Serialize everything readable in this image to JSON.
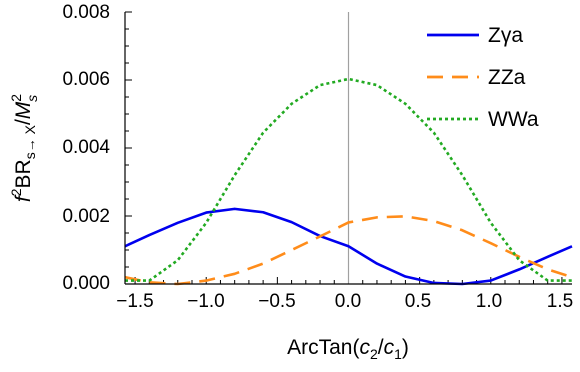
{
  "chart_data": {
    "type": "line",
    "xlabel_main": "ArcTan(",
    "xlabel_c2": "c",
    "xlabel_c2_sub": "2",
    "xlabel_slash": "/",
    "xlabel_c1": "c",
    "xlabel_c1_sub": "1",
    "xlabel_close": ")",
    "ylabel_f": "f",
    "ylabel_f_sup": "2",
    "ylabel_br": "BR",
    "ylabel_sub": "s→ X",
    "ylabel_slash": "/",
    "ylabel_m": "M",
    "ylabel_m_sup": "2",
    "ylabel_m_sub": "s",
    "xlim": [
      -1.5708,
      1.5708
    ],
    "ylim": [
      0,
      0.008
    ],
    "xticks": [
      -1.5,
      -1.0,
      -0.5,
      0.0,
      0.5,
      1.0,
      1.5
    ],
    "xtick_labels": [
      "−1.5",
      "−1.0",
      "−0.5",
      "0.0",
      "0.5",
      "1.0",
      "1.5"
    ],
    "yticks": [
      0,
      0.002,
      0.004,
      0.006,
      0.008
    ],
    "ytick_labels": [
      "0.000",
      "0.002",
      "0.004",
      "0.006",
      "0.008"
    ],
    "grid": false,
    "legend_position": "top-right",
    "reference_line_x": 0.0,
    "series": [
      {
        "name": "Zγa",
        "color": "#0000ee",
        "dash": "solid",
        "x": [
          -1.5708,
          -1.4,
          -1.2,
          -1.0,
          -0.8,
          -0.6,
          -0.4,
          -0.2,
          0.0,
          0.2,
          0.4,
          0.6,
          0.8,
          1.0,
          1.2,
          1.4,
          1.5708
        ],
        "y": [
          0.00111,
          0.00144,
          0.0018,
          0.0021,
          0.00221,
          0.00211,
          0.00182,
          0.00141,
          0.00111,
          0.0006,
          0.00022,
          3e-05,
          0.0,
          0.0001,
          0.00043,
          0.0008,
          0.00111
        ]
      },
      {
        "name": "ZZa",
        "color": "#ff8c1a",
        "dash": "dashed",
        "x": [
          -1.5708,
          -1.4,
          -1.2,
          -1.0,
          -0.8,
          -0.6,
          -0.4,
          -0.2,
          0.0,
          0.2,
          0.4,
          0.6,
          0.8,
          1.0,
          1.2,
          1.4,
          1.5708
        ],
        "y": [
          0.0002,
          5e-05,
          0.0,
          0.0001,
          0.0003,
          0.0006,
          0.001,
          0.0014,
          0.00181,
          0.00196,
          0.00199,
          0.00185,
          0.00158,
          0.0012,
          0.0008,
          0.00043,
          0.0002
        ]
      },
      {
        "name": "WWa",
        "color": "#22aa22",
        "dash": "dotted",
        "x": [
          -1.5708,
          -1.4,
          -1.2,
          -1.0,
          -0.8,
          -0.6,
          -0.4,
          -0.2,
          0.0,
          0.2,
          0.4,
          0.6,
          0.8,
          1.0,
          1.2,
          1.4,
          1.5708
        ],
        "y": [
          0.0001,
          0.0001,
          0.0007,
          0.0018,
          0.0032,
          0.00445,
          0.0053,
          0.00585,
          0.00603,
          0.00585,
          0.0053,
          0.00445,
          0.0032,
          0.0018,
          0.0007,
          0.0001,
          0.0001
        ]
      }
    ]
  }
}
